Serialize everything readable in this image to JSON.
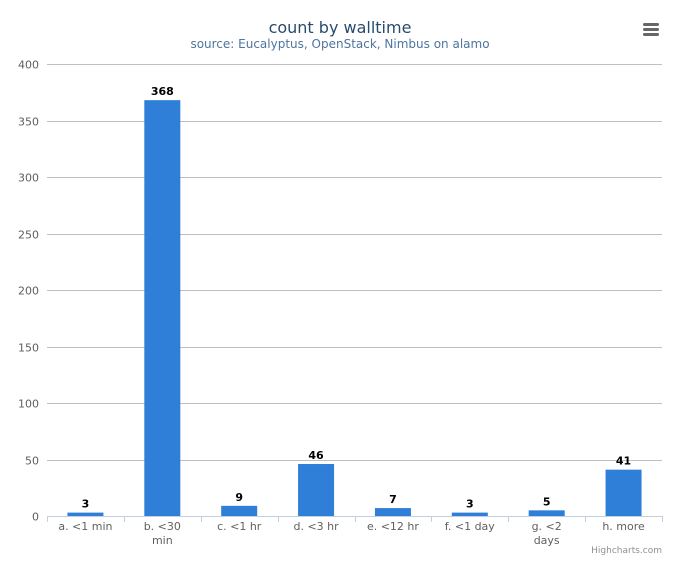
{
  "chart_data": {
    "type": "bar",
    "title": "count by walltime",
    "subtitle": "source: Eucalyptus, OpenStack, Nimbus on alamo",
    "categories": [
      "a. <1 min",
      "b. <30 min",
      "c. <1 hr",
      "d. <3 hr",
      "e. <12 hr",
      "f. <1 day",
      "g. <2 days",
      "h. more"
    ],
    "category_lines": [
      [
        "a. <1 min"
      ],
      [
        "b. <30",
        "min"
      ],
      [
        "c. <1 hr"
      ],
      [
        "d. <3 hr"
      ],
      [
        "e. <12 hr"
      ],
      [
        "f. <1 day"
      ],
      [
        "g. <2",
        "days"
      ],
      [
        "h. more"
      ]
    ],
    "values": [
      3,
      368,
      9,
      46,
      7,
      3,
      5,
      41
    ],
    "data_labels": [
      "3",
      "368",
      "9",
      "46",
      "7",
      "3",
      "5",
      "41"
    ],
    "xlabel": "",
    "ylabel": "",
    "ylim": [
      0,
      400
    ],
    "yticks": [
      0,
      50,
      100,
      150,
      200,
      250,
      300,
      350,
      400
    ],
    "ytick_labels": [
      "0",
      "50",
      "100",
      "150",
      "200",
      "250",
      "300",
      "350",
      "400"
    ],
    "grid": true,
    "legend": "none",
    "bar_color": "#2f7ed8",
    "grid_color": "#c0c0c0",
    "axis_color": "#c0d0e0"
  },
  "menu": {
    "icon": "hamburger-menu-icon"
  },
  "credits": "Highcharts.com"
}
